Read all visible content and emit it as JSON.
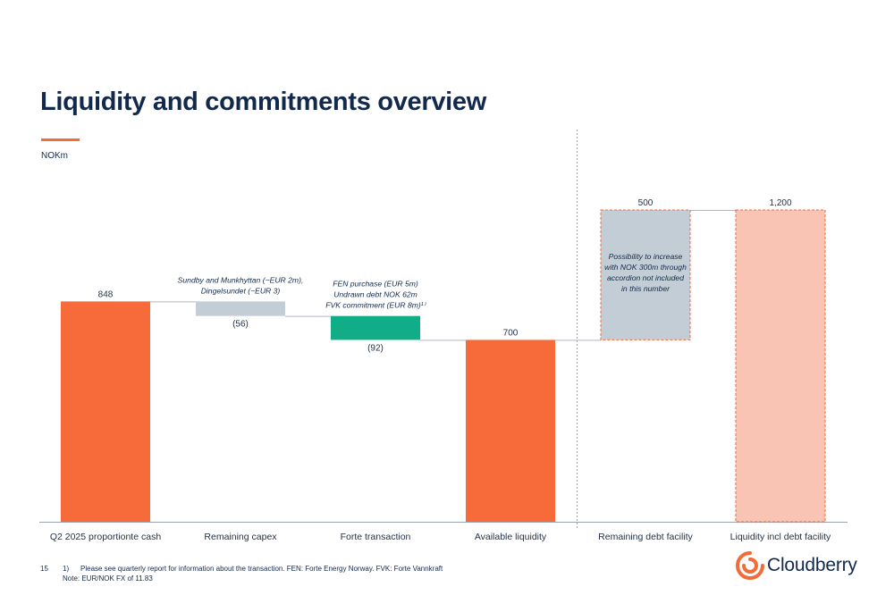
{
  "title": "Liquidity and commitments overview",
  "unit": "NOKm",
  "page_number": "15",
  "footnote": {
    "marker": "1)",
    "line1": "Please see quarterly report for information about the transaction. FEN: Forte Energy Norway. FVK: Forte Vannkraft",
    "line2": "Note: EUR/NOK  FX of 11.83"
  },
  "brand": {
    "name": "Cloudberry",
    "logo_icon": "cloudberry-swirl-icon"
  },
  "colors": {
    "orange": "#f76a39",
    "grey": "#c3cdd6",
    "green": "#11ad88",
    "light_orange": "#f9c4b3",
    "dashed_border": "#f76a39"
  },
  "chart_data": {
    "type": "bar",
    "subtype": "waterfall",
    "unit": "NOKm",
    "categories": [
      "Q2 2025 proportionte cash",
      "Remaining capex",
      "Forte transaction",
      "Available liquidity",
      "Remaining debt facility",
      "Liquidity incl debt facility"
    ],
    "bars": [
      {
        "category": "Q2 2025 proportionte cash",
        "kind": "total",
        "start": 0,
        "end": 848,
        "label": "848",
        "color": "orange"
      },
      {
        "category": "Remaining capex",
        "kind": "delta",
        "start": 848,
        "end": 792,
        "label": "(56)",
        "color": "grey"
      },
      {
        "category": "Forte transaction",
        "kind": "delta",
        "start": 792,
        "end": 700,
        "label": "(92)",
        "color": "green"
      },
      {
        "category": "Available liquidity",
        "kind": "total",
        "start": 0,
        "end": 700,
        "label": "700",
        "color": "orange"
      },
      {
        "category": "Remaining debt facility",
        "kind": "delta",
        "start": 700,
        "end": 1200,
        "label": "500",
        "color": "grey",
        "dashed": true
      },
      {
        "category": "Liquidity incl debt facility",
        "kind": "total",
        "start": 0,
        "end": 1200,
        "label": "1,200",
        "color": "light_orange",
        "dashed": true
      }
    ],
    "annotations": [
      {
        "bar": 1,
        "lines": [
          "Sundby and Munkhyttan (~EUR 2m),",
          "Dingelsundet (~EUR 3)"
        ]
      },
      {
        "bar": 2,
        "lines": [
          "FEN purchase  (EUR 5m)",
          "Undrawn debt  NOK 62m",
          "FVK commitment (EUR 8m)¹⁾"
        ]
      },
      {
        "bar": 4,
        "lines": [
          "Possibility to increase",
          "with NOK 300m through",
          "accordion not included",
          "in this number"
        ],
        "inside": true
      }
    ],
    "ylim": [
      0,
      1200
    ],
    "grid": false,
    "legend": "none"
  }
}
